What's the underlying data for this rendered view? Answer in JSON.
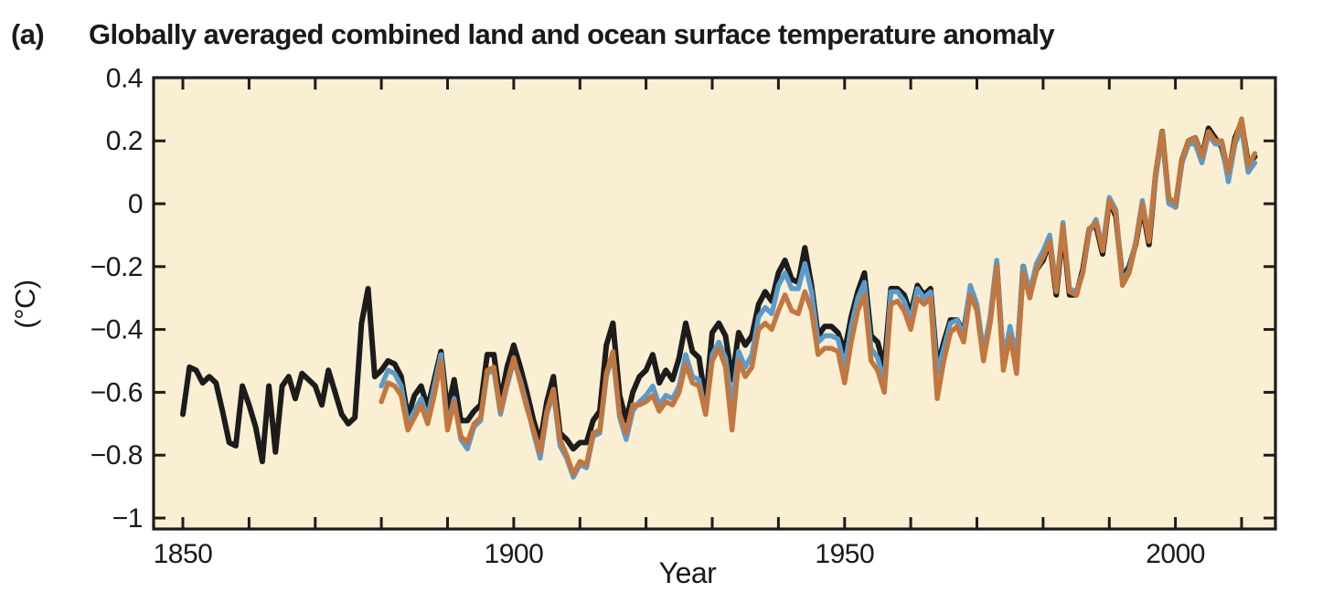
{
  "figure": {
    "panel_label": "(a)",
    "title": "Globally averaged combined land and ocean surface temperature anomaly",
    "x_axis": {
      "label": "Year",
      "major_ticks": [
        1850,
        1900,
        1950,
        2000
      ],
      "minor_tick_interval_years": 10,
      "range": [
        1846,
        2015
      ]
    },
    "y_axis": {
      "label": "(°C)",
      "ticks": [
        0.4,
        0.2,
        0,
        -0.2,
        -0.4,
        -0.6,
        -0.8,
        -1
      ],
      "tick_labels": [
        "0.4",
        "0.2",
        "0",
        "−0.2",
        "−0.4",
        "−0.6",
        "−0.8",
        "−1"
      ],
      "range": [
        -1.03,
        0.4
      ]
    },
    "colors": {
      "plot_background": "#FBEFD3",
      "axis": "#1c1c1c",
      "series_black": "#1c1c1c",
      "series_blue": "#5C9BC9",
      "series_orange": "#C1773F"
    }
  },
  "chart_data": {
    "type": "line",
    "title": "Globally averaged combined land and ocean surface temperature anomaly",
    "xlabel": "Year",
    "ylabel": "(°C)",
    "xlim": [
      1846,
      2015
    ],
    "ylim": [
      -1.03,
      0.4
    ],
    "grid": false,
    "legend": "none",
    "x_step_years": 1,
    "series": [
      {
        "name": "black",
        "color": "#1c1c1c",
        "stroke_width": 6,
        "start_year": 1850,
        "end_year": 2012,
        "values": [
          -0.67,
          -0.52,
          -0.53,
          -0.57,
          -0.55,
          -0.57,
          -0.66,
          -0.76,
          -0.77,
          -0.58,
          -0.64,
          -0.71,
          -0.82,
          -0.58,
          -0.79,
          -0.58,
          -0.55,
          -0.62,
          -0.54,
          -0.56,
          -0.58,
          -0.64,
          -0.53,
          -0.6,
          -0.67,
          -0.7,
          -0.68,
          -0.38,
          -0.27,
          -0.55,
          -0.53,
          -0.5,
          -0.51,
          -0.55,
          -0.68,
          -0.61,
          -0.58,
          -0.65,
          -0.56,
          -0.47,
          -0.66,
          -0.56,
          -0.69,
          -0.69,
          -0.66,
          -0.64,
          -0.48,
          -0.48,
          -0.63,
          -0.52,
          -0.45,
          -0.52,
          -0.6,
          -0.69,
          -0.76,
          -0.63,
          -0.55,
          -0.73,
          -0.75,
          -0.78,
          -0.76,
          -0.76,
          -0.69,
          -0.66,
          -0.45,
          -0.38,
          -0.61,
          -0.69,
          -0.6,
          -0.55,
          -0.53,
          -0.48,
          -0.57,
          -0.53,
          -0.56,
          -0.49,
          -0.38,
          -0.47,
          -0.49,
          -0.63,
          -0.41,
          -0.38,
          -0.42,
          -0.56,
          -0.41,
          -0.45,
          -0.42,
          -0.32,
          -0.28,
          -0.31,
          -0.22,
          -0.18,
          -0.24,
          -0.25,
          -0.14,
          -0.26,
          -0.42,
          -0.39,
          -0.39,
          -0.41,
          -0.47,
          -0.36,
          -0.28,
          -0.22,
          -0.42,
          -0.44,
          -0.52,
          -0.27,
          -0.27,
          -0.29,
          -0.35,
          -0.26,
          -0.29,
          -0.27,
          -0.52,
          -0.44,
          -0.37,
          -0.37,
          -0.41,
          -0.27,
          -0.33,
          -0.49,
          -0.37,
          -0.19,
          -0.51,
          -0.4,
          -0.51,
          -0.2,
          -0.29,
          -0.21,
          -0.18,
          -0.12,
          -0.29,
          -0.08,
          -0.29,
          -0.29,
          -0.21,
          -0.08,
          -0.07,
          -0.16,
          0.01,
          -0.04,
          -0.24,
          -0.2,
          -0.13,
          -0.01,
          -0.13,
          0.09,
          0.23,
          0.01,
          -0.01,
          0.14,
          0.2,
          0.21,
          0.15,
          0.24,
          0.21,
          0.18,
          0.09,
          0.21,
          0.26,
          0.13,
          0.15
        ]
      },
      {
        "name": "blue",
        "color": "#5C9BC9",
        "stroke_width": 5.4,
        "start_year": 1880,
        "end_year": 2012,
        "values": [
          -0.58,
          -0.53,
          -0.54,
          -0.58,
          -0.7,
          -0.66,
          -0.62,
          -0.68,
          -0.58,
          -0.48,
          -0.71,
          -0.62,
          -0.75,
          -0.78,
          -0.71,
          -0.69,
          -0.54,
          -0.53,
          -0.67,
          -0.58,
          -0.5,
          -0.56,
          -0.64,
          -0.73,
          -0.81,
          -0.67,
          -0.6,
          -0.77,
          -0.81,
          -0.87,
          -0.83,
          -0.84,
          -0.74,
          -0.73,
          -0.55,
          -0.48,
          -0.68,
          -0.75,
          -0.66,
          -0.63,
          -0.61,
          -0.58,
          -0.64,
          -0.61,
          -0.62,
          -0.58,
          -0.48,
          -0.55,
          -0.56,
          -0.67,
          -0.48,
          -0.44,
          -0.49,
          -0.64,
          -0.47,
          -0.52,
          -0.48,
          -0.36,
          -0.33,
          -0.35,
          -0.26,
          -0.22,
          -0.27,
          -0.27,
          -0.19,
          -0.28,
          -0.44,
          -0.42,
          -0.42,
          -0.43,
          -0.52,
          -0.39,
          -0.3,
          -0.25,
          -0.46,
          -0.49,
          -0.57,
          -0.28,
          -0.28,
          -0.31,
          -0.37,
          -0.27,
          -0.3,
          -0.28,
          -0.54,
          -0.46,
          -0.38,
          -0.37,
          -0.42,
          -0.26,
          -0.32,
          -0.47,
          -0.36,
          -0.18,
          -0.5,
          -0.39,
          -0.49,
          -0.2,
          -0.28,
          -0.19,
          -0.15,
          -0.1,
          -0.27,
          -0.06,
          -0.27,
          -0.28,
          -0.22,
          -0.09,
          -0.05,
          -0.14,
          0.02,
          -0.02,
          -0.25,
          -0.21,
          -0.12,
          0.01,
          -0.11,
          0.08,
          0.22,
          0.0,
          -0.01,
          0.13,
          0.19,
          0.19,
          0.13,
          0.22,
          0.19,
          0.19,
          0.07,
          0.19,
          0.24,
          0.1,
          0.13
        ]
      },
      {
        "name": "orange",
        "color": "#C1773F",
        "stroke_width": 5.4,
        "start_year": 1880,
        "end_year": 2012,
        "values": [
          -0.63,
          -0.57,
          -0.58,
          -0.61,
          -0.72,
          -0.68,
          -0.64,
          -0.7,
          -0.61,
          -0.5,
          -0.72,
          -0.63,
          -0.74,
          -0.76,
          -0.7,
          -0.68,
          -0.53,
          -0.52,
          -0.66,
          -0.57,
          -0.49,
          -0.57,
          -0.65,
          -0.72,
          -0.79,
          -0.66,
          -0.59,
          -0.75,
          -0.8,
          -0.86,
          -0.82,
          -0.83,
          -0.73,
          -0.72,
          -0.54,
          -0.47,
          -0.67,
          -0.73,
          -0.64,
          -0.64,
          -0.63,
          -0.61,
          -0.66,
          -0.63,
          -0.64,
          -0.6,
          -0.51,
          -0.57,
          -0.58,
          -0.67,
          -0.5,
          -0.46,
          -0.52,
          -0.72,
          -0.5,
          -0.55,
          -0.52,
          -0.4,
          -0.38,
          -0.4,
          -0.34,
          -0.29,
          -0.34,
          -0.35,
          -0.28,
          -0.34,
          -0.48,
          -0.46,
          -0.46,
          -0.47,
          -0.57,
          -0.44,
          -0.34,
          -0.29,
          -0.5,
          -0.53,
          -0.6,
          -0.32,
          -0.31,
          -0.34,
          -0.4,
          -0.3,
          -0.32,
          -0.3,
          -0.62,
          -0.5,
          -0.41,
          -0.39,
          -0.44,
          -0.29,
          -0.34,
          -0.5,
          -0.38,
          -0.2,
          -0.53,
          -0.42,
          -0.54,
          -0.22,
          -0.3,
          -0.21,
          -0.17,
          -0.12,
          -0.28,
          -0.07,
          -0.28,
          -0.29,
          -0.22,
          -0.08,
          -0.06,
          -0.15,
          0.01,
          -0.03,
          -0.26,
          -0.22,
          -0.13,
          0.0,
          -0.12,
          0.1,
          0.23,
          0.02,
          0.0,
          0.14,
          0.2,
          0.21,
          0.15,
          0.23,
          0.2,
          0.2,
          0.1,
          0.2,
          0.27,
          0.12,
          0.16
        ]
      }
    ]
  }
}
